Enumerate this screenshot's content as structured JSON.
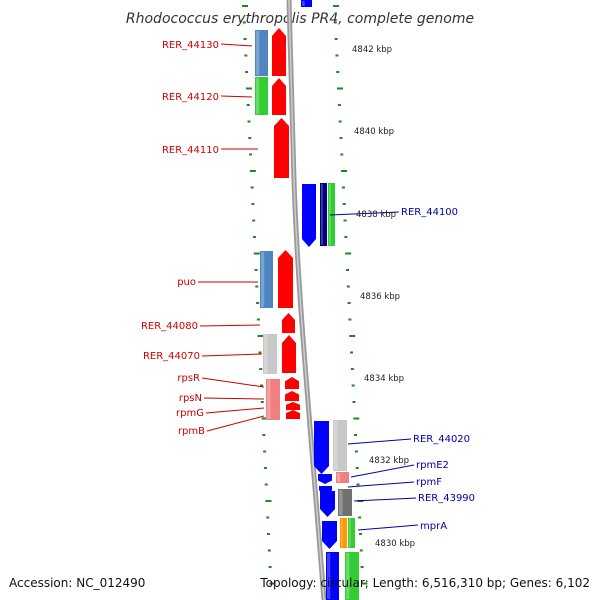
{
  "title": "Rhodococcus erythropolis PR4, complete genome",
  "accession_text": "Accession: NC_012490",
  "topology_text": "Topology: circular; Length: 6,516,310 bp; Genes: 6,102",
  "scale_labels": [
    "4842 kbp",
    "4840 kbp",
    "4838 kbp",
    "4836 kbp",
    "4834 kbp",
    "4832 kbp",
    "4830 kbp"
  ],
  "left_gene_labels": [
    "RER_44130",
    "RER_44120",
    "RER_44110",
    "puo",
    "RER_44080",
    "RER_44070",
    "rpsR",
    "rpsN",
    "rpmG",
    "rpmB"
  ],
  "right_gene_labels": [
    "RER_44100",
    "RER_44020",
    "rpmE2",
    "rpmF",
    "RER_43990",
    "mprA"
  ],
  "colors": {
    "red_strand": "#ff0000",
    "blue_strand": "#0000ff",
    "steel_blue_cog": "#4f86c0",
    "green_cog": "#33cc33",
    "light_gray_cog": "#c8c8c8",
    "dark_gray_cog": "#707070",
    "pink_cog": "#f08080",
    "orange_cog": "#ff9900",
    "navy_cog": "#000080",
    "tick_green": "#1a8a1a",
    "backbone_gray": "#888888",
    "left_label": "#cc0000",
    "right_label": "#0000aa"
  }
}
